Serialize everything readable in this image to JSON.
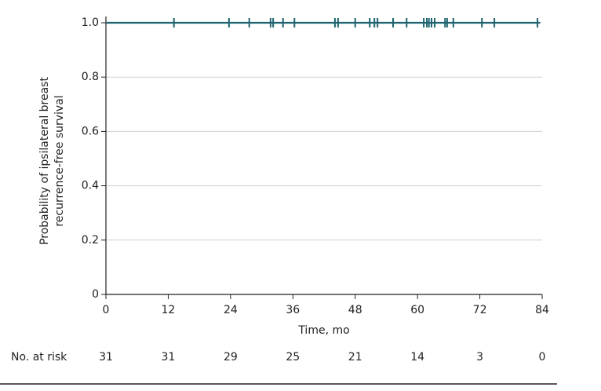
{
  "chart_data": {
    "type": "line",
    "xlabel": "Time, mo",
    "ylabel": [
      "Probability of ipsilateral breast",
      "recurrence-free survival"
    ],
    "xlim": [
      0,
      84
    ],
    "xticks": [
      0,
      12,
      24,
      36,
      48,
      60,
      72,
      84
    ],
    "ylim": [
      0,
      1
    ],
    "yticks": [
      0,
      0.2,
      0.4,
      0.6,
      0.8,
      {
        "value": 1,
        "label": "1.0"
      }
    ],
    "grid": true,
    "series": [
      {
        "color": "#1e6470",
        "x": [
          0,
          83.6
        ],
        "values": [
          1,
          1
        ],
        "censor_x": [
          13.1,
          23.7,
          27.6,
          31.7,
          32.2,
          34.1,
          36.3,
          44.1,
          44.7,
          48.0,
          50.8,
          51.7,
          52.3,
          55.3,
          57.9,
          61.2,
          61.8,
          62.2,
          62.7,
          63.3,
          65.3,
          65.7,
          66.9,
          72.4,
          74.8,
          83.1
        ],
        "censor_values": [
          1,
          1,
          1,
          1,
          1,
          1,
          1,
          1,
          1,
          1,
          1,
          1,
          1,
          1,
          1,
          1,
          1,
          1,
          1,
          1,
          1,
          1,
          1,
          1,
          1,
          1
        ]
      }
    ],
    "risk_table": {
      "label": "No. at risk",
      "values": [
        31,
        31,
        29,
        25,
        21,
        14,
        3,
        0
      ]
    }
  }
}
